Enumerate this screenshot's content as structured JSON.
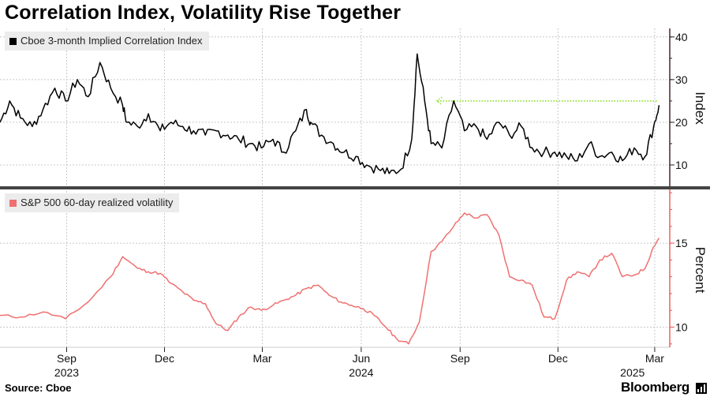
{
  "title": "Correlation Index, Volatility Rise Together",
  "source": "Source: Cboe",
  "brand": "Bloomberg",
  "colors": {
    "correlation": "#000000",
    "volatility": "#f07070",
    "arrow": "#88dd22",
    "grid": "#c8c8c8",
    "divider": "#444444"
  },
  "chart_data": [
    {
      "type": "line",
      "title": "",
      "legend": "Cboe 3-month Implied Correlation Index",
      "ylabel": "Index",
      "ylim": [
        5,
        42
      ],
      "yticks": [
        10,
        20,
        30,
        40
      ],
      "x_start": "2023-07-01",
      "x_end": "2025-03-15",
      "annotation": "dotted arrow at level 25 pointing back from Mar 2025 to Aug 2024",
      "series": [
        {
          "name": "Cboe 3-month Implied Correlation Index",
          "x": [
            "2023-07-01",
            "2023-07-10",
            "2023-07-20",
            "2023-07-31",
            "2023-08-10",
            "2023-08-21",
            "2023-08-31",
            "2023-09-11",
            "2023-09-21",
            "2023-10-02",
            "2023-10-12",
            "2023-10-23",
            "2023-10-27",
            "2023-11-06",
            "2023-11-16",
            "2023-11-27",
            "2023-12-07",
            "2023-12-18",
            "2023-12-28",
            "2024-01-08",
            "2024-01-18",
            "2024-01-29",
            "2024-02-08",
            "2024-02-19",
            "2024-02-29",
            "2024-03-11",
            "2024-03-21",
            "2024-04-01",
            "2024-04-11",
            "2024-04-15",
            "2024-04-25",
            "2024-05-06",
            "2024-05-16",
            "2024-05-27",
            "2024-06-06",
            "2024-06-17",
            "2024-06-27",
            "2024-07-08",
            "2024-07-18",
            "2024-07-23",
            "2024-07-30",
            "2024-08-05",
            "2024-08-15",
            "2024-08-26",
            "2024-09-05",
            "2024-09-16",
            "2024-09-26",
            "2024-10-07",
            "2024-10-17",
            "2024-10-28",
            "2024-11-07",
            "2024-11-18",
            "2024-11-28",
            "2024-12-09",
            "2024-12-19",
            "2024-12-30",
            "2025-01-09",
            "2025-01-20",
            "2025-01-30",
            "2025-02-10",
            "2025-02-20",
            "2025-02-28",
            "2025-03-05"
          ],
          "y": [
            20,
            25,
            21,
            19,
            23,
            28,
            25,
            30,
            26,
            34,
            28,
            24,
            20,
            19,
            22,
            18,
            20,
            19,
            18,
            17,
            18,
            17,
            16,
            15,
            14,
            16,
            13,
            18,
            23,
            20,
            17,
            15,
            13,
            12,
            10,
            9,
            8,
            9,
            16,
            36,
            25,
            15,
            14,
            25,
            18,
            19,
            16,
            20,
            17,
            19,
            14,
            13,
            13,
            12,
            11,
            15,
            12,
            13,
            11,
            14,
            12,
            19,
            24
          ]
        }
      ]
    },
    {
      "type": "line",
      "title": "",
      "legend": "S&P 500 60-day realized volatility",
      "ylabel": "Percent",
      "ylim": [
        8.8,
        18.2
      ],
      "yticks": [
        10,
        15
      ],
      "x_start": "2023-07-01",
      "x_end": "2025-03-15",
      "x_tick_labels": [
        "Sep",
        "Dec",
        "Mar",
        "Jun",
        "Sep",
        "Dec",
        "Mar"
      ],
      "x_tick_dates": [
        "2023-09-01",
        "2023-12-01",
        "2024-03-01",
        "2024-06-01",
        "2024-09-01",
        "2024-12-01",
        "2025-03-01"
      ],
      "year_labels": [
        "2023",
        "2024",
        "2025"
      ],
      "year_label_dates": [
        "2023-09-01",
        "2024-06-01",
        "2025-02-01"
      ],
      "series": [
        {
          "name": "S&P 500 60-day realized volatility",
          "x": [
            "2023-07-01",
            "2023-07-20",
            "2023-08-10",
            "2023-08-31",
            "2023-09-21",
            "2023-10-12",
            "2023-10-23",
            "2023-11-06",
            "2023-11-16",
            "2023-11-27",
            "2023-12-07",
            "2023-12-18",
            "2023-12-28",
            "2024-01-08",
            "2024-01-18",
            "2024-01-29",
            "2024-02-08",
            "2024-02-19",
            "2024-02-29",
            "2024-03-11",
            "2024-03-21",
            "2024-04-01",
            "2024-04-11",
            "2024-04-22",
            "2024-05-02",
            "2024-05-13",
            "2024-05-23",
            "2024-06-03",
            "2024-06-13",
            "2024-06-24",
            "2024-07-04",
            "2024-07-15",
            "2024-07-25",
            "2024-08-05",
            "2024-08-15",
            "2024-08-26",
            "2024-09-05",
            "2024-09-16",
            "2024-09-26",
            "2024-10-07",
            "2024-10-17",
            "2024-10-28",
            "2024-11-07",
            "2024-11-18",
            "2024-11-28",
            "2024-12-09",
            "2024-12-19",
            "2024-12-30",
            "2025-01-09",
            "2025-01-20",
            "2025-01-30",
            "2025-02-10",
            "2025-02-20",
            "2025-02-28",
            "2025-03-05"
          ],
          "y": [
            10.7,
            10.6,
            10.9,
            10.5,
            11.5,
            13.0,
            14.2,
            13.5,
            13.3,
            13.2,
            12.6,
            12.1,
            11.6,
            11.4,
            10.2,
            9.8,
            10.6,
            11.2,
            11.0,
            11.3,
            11.6,
            11.9,
            12.3,
            12.5,
            11.9,
            11.5,
            11.3,
            11.1,
            10.7,
            10.0,
            9.3,
            9.0,
            10.3,
            14.5,
            15.1,
            16.0,
            16.8,
            16.5,
            16.7,
            15.5,
            13.0,
            12.8,
            12.5,
            10.6,
            10.5,
            12.8,
            13.3,
            13.0,
            14.0,
            14.4,
            13.0,
            13.1,
            13.5,
            14.8,
            15.3
          ]
        }
      ]
    }
  ]
}
